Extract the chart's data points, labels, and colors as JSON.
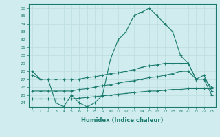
{
  "xlabel": "Humidex (Indice chaleur)",
  "x": [
    0,
    1,
    2,
    3,
    4,
    5,
    6,
    7,
    8,
    9,
    10,
    11,
    12,
    13,
    14,
    15,
    16,
    17,
    18,
    19,
    20,
    21,
    22,
    23
  ],
  "line1": [
    28,
    27,
    27,
    24,
    23.5,
    25,
    24,
    23.5,
    24,
    25,
    29.5,
    32,
    33,
    35,
    35.5,
    36,
    35,
    34,
    33,
    30,
    29,
    27,
    27,
    25
  ],
  "line2": [
    27.5,
    27,
    27,
    27,
    27,
    27,
    27,
    27.2,
    27.3,
    27.5,
    27.7,
    27.8,
    28,
    28.2,
    28.5,
    28.7,
    28.8,
    29,
    29,
    29,
    29,
    27,
    27,
    26
  ],
  "line3": [
    25.5,
    25.5,
    25.5,
    25.5,
    25.5,
    25.5,
    25.7,
    25.8,
    26,
    26.2,
    26.3,
    26.5,
    26.7,
    26.8,
    27,
    27.2,
    27.3,
    27.5,
    27.7,
    28,
    28,
    27,
    27.5,
    25.5
  ],
  "line4": [
    24.5,
    24.5,
    24.5,
    24.5,
    24.5,
    24.5,
    24.6,
    24.7,
    24.8,
    24.9,
    25,
    25.1,
    25.2,
    25.3,
    25.4,
    25.5,
    25.5,
    25.6,
    25.7,
    25.7,
    25.8,
    25.8,
    25.8,
    25.8
  ],
  "line_color": "#1a7a6e",
  "bg_color": "#d0ecee",
  "grid_color": "#c0dfe1",
  "ylim": [
    23.5,
    36.5
  ],
  "yticks": [
    24,
    25,
    26,
    27,
    28,
    29,
    30,
    31,
    32,
    33,
    34,
    35,
    36
  ],
  "xlim": [
    -0.5,
    23.5
  ]
}
